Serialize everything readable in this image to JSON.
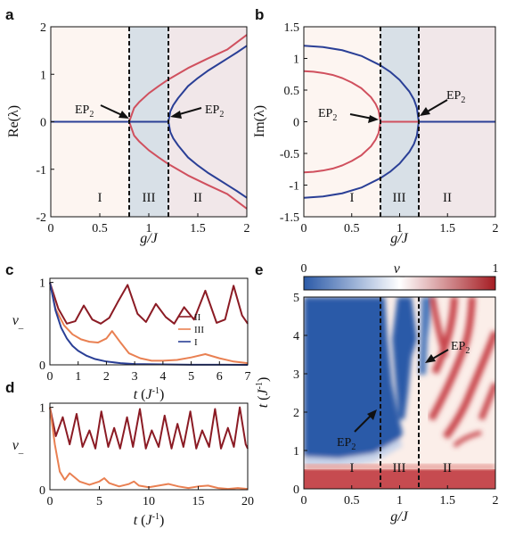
{
  "panels": {
    "a": {
      "letter": "a"
    },
    "b": {
      "letter": "b"
    },
    "c": {
      "letter": "c"
    },
    "d": {
      "letter": "d"
    },
    "e": {
      "letter": "e"
    }
  },
  "colors": {
    "red": "#d0505e",
    "blue": "#2a3f96",
    "darkred": "#8b1b24",
    "orange": "#e98052",
    "regionI": "#fdf5f1",
    "regionIII": "#d8e0e7",
    "regionII": "#f1e7e9"
  },
  "chart_data": [
    {
      "id": "a",
      "type": "line",
      "xlabel": "g/J",
      "ylabel": "Re(λ)",
      "xlim": [
        0,
        2
      ],
      "ylim": [
        -2,
        2
      ],
      "xticks": [
        "0",
        "0.5",
        "1",
        "1.5",
        "2"
      ],
      "yticks": [
        "-2",
        "-1",
        "0",
        "1",
        "2"
      ],
      "regions": [
        {
          "label": "I",
          "x": [
            0,
            0.8
          ]
        },
        {
          "label": "III",
          "x": [
            0.8,
            1.2
          ]
        },
        {
          "label": "II",
          "x": [
            1.2,
            2
          ]
        }
      ],
      "exceptional_points": [
        {
          "label": "EP",
          "sub": "2",
          "g": 0.8
        },
        {
          "label": "EP",
          "sub": "2",
          "g": 1.2
        }
      ],
      "series": [
        {
          "color": "red",
          "x": [
            0,
            0.8,
            0.85,
            0.9,
            1.0,
            1.1,
            1.2,
            1.4,
            1.6,
            1.8,
            2.0
          ],
          "upper": [
            0,
            0,
            0.29,
            0.41,
            0.6,
            0.75,
            0.89,
            1.13,
            1.33,
            1.52,
            1.83
          ]
        },
        {
          "color": "blue",
          "x": [
            0,
            1.2,
            1.22,
            1.25,
            1.3,
            1.4,
            1.5,
            1.6,
            1.7,
            1.8,
            1.9,
            2.0
          ],
          "upper": [
            0,
            0,
            0.22,
            0.35,
            0.5,
            0.75,
            0.92,
            1.07,
            1.2,
            1.33,
            1.46,
            1.6
          ]
        }
      ]
    },
    {
      "id": "b",
      "type": "line",
      "xlabel": "g/J",
      "ylabel": "Im(λ)",
      "xlim": [
        0,
        2
      ],
      "ylim": [
        -1.5,
        1.5
      ],
      "xticks": [
        "0",
        "0.5",
        "1",
        "1.5",
        "2"
      ],
      "yticks": [
        "-1.5",
        "-1",
        "-0.5",
        "0",
        "0.5",
        "1",
        "1.5"
      ],
      "regions": [
        {
          "label": "I",
          "x": [
            0,
            0.8
          ]
        },
        {
          "label": "III",
          "x": [
            0.8,
            1.2
          ]
        },
        {
          "label": "II",
          "x": [
            1.2,
            2
          ]
        }
      ],
      "exceptional_points": [
        {
          "label": "EP",
          "sub": "2",
          "g": 0.8
        },
        {
          "label": "EP",
          "sub": "2",
          "g": 1.2
        }
      ],
      "series": [
        {
          "color": "red",
          "x": [
            0,
            0.1,
            0.2,
            0.3,
            0.4,
            0.5,
            0.6,
            0.7,
            0.75,
            0.78,
            0.8,
            2.0
          ],
          "upper": [
            0.8,
            0.79,
            0.77,
            0.74,
            0.69,
            0.62,
            0.53,
            0.39,
            0.28,
            0.18,
            0,
            0
          ]
        },
        {
          "color": "blue",
          "x": [
            0,
            0.2,
            0.4,
            0.6,
            0.8,
            0.9,
            1.0,
            1.1,
            1.15,
            1.18,
            1.2,
            2.0
          ],
          "upper": [
            1.2,
            1.18,
            1.13,
            1.04,
            0.89,
            0.79,
            0.66,
            0.48,
            0.35,
            0.22,
            0,
            0
          ]
        }
      ]
    },
    {
      "id": "c",
      "type": "line",
      "xlabel": "t (J⁻¹)",
      "ylabel": "v_",
      "xlim": [
        0,
        7
      ],
      "ylim": [
        0,
        1.05
      ],
      "xticks": [
        "0",
        "1",
        "2",
        "3",
        "4",
        "5",
        "6",
        "7"
      ],
      "yticks": [
        "0",
        "1"
      ],
      "legend": [
        "II",
        "III",
        "I"
      ],
      "series": [
        {
          "name": "II",
          "color": "darkred",
          "x": [
            0,
            0.3,
            0.6,
            0.9,
            1.2,
            1.5,
            1.8,
            2.1,
            2.4,
            2.75,
            3.1,
            3.4,
            3.75,
            4.1,
            4.4,
            4.75,
            5.1,
            5.5,
            5.9,
            6.2,
            6.5,
            6.8,
            7.0
          ],
          "y": [
            1.0,
            0.68,
            0.5,
            0.53,
            0.72,
            0.55,
            0.5,
            0.57,
            0.76,
            0.97,
            0.62,
            0.52,
            0.74,
            0.58,
            0.5,
            0.7,
            0.55,
            0.9,
            0.51,
            0.55,
            0.96,
            0.6,
            0.5
          ]
        },
        {
          "name": "III",
          "color": "orange",
          "x": [
            0,
            0.2,
            0.5,
            0.8,
            1.1,
            1.4,
            1.7,
            2.0,
            2.2,
            2.5,
            2.8,
            3.2,
            3.6,
            4.0,
            4.5,
            5.0,
            5.5,
            6.0,
            6.5,
            7.0
          ],
          "y": [
            1.0,
            0.68,
            0.48,
            0.37,
            0.31,
            0.28,
            0.27,
            0.32,
            0.41,
            0.27,
            0.14,
            0.08,
            0.05,
            0.05,
            0.06,
            0.09,
            0.13,
            0.08,
            0.04,
            0.02
          ]
        },
        {
          "name": "I",
          "color": "blue",
          "x": [
            0,
            0.2,
            0.4,
            0.6,
            0.8,
            1.0,
            1.3,
            1.6,
            2.0,
            2.5,
            3.0,
            4.0,
            5.0,
            6.0,
            7.0
          ],
          "y": [
            1.0,
            0.66,
            0.45,
            0.32,
            0.23,
            0.17,
            0.11,
            0.07,
            0.04,
            0.02,
            0.01,
            0.005,
            0.002,
            0.001,
            0.0
          ]
        }
      ]
    },
    {
      "id": "d",
      "type": "line",
      "xlabel": "t (J⁻¹)",
      "ylabel": "v_",
      "xlim": [
        0,
        20
      ],
      "ylim": [
        0,
        1.05
      ],
      "xticks": [
        "0",
        "5",
        "10",
        "15",
        "20"
      ],
      "yticks": [
        "0",
        "1"
      ],
      "series": [
        {
          "name": "II",
          "color": "darkred",
          "x": [
            0,
            0.6,
            1.3,
            2.0,
            2.7,
            3.3,
            4.0,
            4.6,
            5.2,
            5.9,
            6.5,
            7.1,
            7.8,
            8.4,
            9.1,
            9.7,
            10.3,
            11.0,
            11.6,
            12.3,
            12.9,
            13.5,
            14.2,
            14.8,
            15.4,
            16.1,
            16.7,
            17.3,
            18.0,
            18.6,
            19.2,
            19.8,
            20.0
          ],
          "y": [
            1.0,
            0.65,
            0.88,
            0.55,
            0.92,
            0.52,
            0.72,
            0.5,
            0.95,
            0.52,
            0.75,
            0.5,
            0.88,
            0.52,
            0.98,
            0.5,
            0.72,
            0.52,
            0.9,
            0.5,
            0.8,
            0.52,
            0.95,
            0.5,
            0.72,
            0.52,
            0.98,
            0.5,
            0.75,
            0.52,
            1.0,
            0.55,
            0.5
          ]
        },
        {
          "name": "III",
          "color": "orange",
          "x": [
            0,
            0.5,
            1.0,
            1.5,
            2.0,
            3.0,
            4.0,
            5.0,
            5.5,
            6.0,
            7.0,
            8.0,
            8.5,
            9.0,
            10.0,
            11.0,
            12.0,
            13.0,
            14.0,
            15.0,
            16.0,
            17.0,
            18.0,
            19.0,
            20.0
          ],
          "y": [
            1.0,
            0.55,
            0.22,
            0.12,
            0.2,
            0.1,
            0.06,
            0.1,
            0.14,
            0.08,
            0.04,
            0.07,
            0.1,
            0.05,
            0.03,
            0.05,
            0.07,
            0.04,
            0.02,
            0.04,
            0.05,
            0.02,
            0.01,
            0.02,
            0.01
          ]
        }
      ]
    },
    {
      "id": "e",
      "type": "heatmap",
      "xlabel": "g/J",
      "ylabel": "t (J⁻¹)",
      "xlim": [
        0,
        2
      ],
      "ylim": [
        0,
        5
      ],
      "xticks": [
        "0",
        "0.5",
        "1",
        "1.5",
        "2"
      ],
      "yticks": [
        "0",
        "1",
        "2",
        "3",
        "4",
        "5"
      ],
      "colorbar": {
        "label": "v_",
        "min": "0",
        "max": "1",
        "colors": [
          "#2b5aa8",
          "#ffffff",
          "#a51c22"
        ]
      },
      "regions": [
        {
          "label": "I",
          "x": [
            0,
            0.8
          ]
        },
        {
          "label": "III",
          "x": [
            0.8,
            1.2
          ]
        },
        {
          "label": "II",
          "x": [
            1.2,
            2
          ]
        }
      ],
      "exceptional_points": [
        {
          "label": "EP",
          "sub": "2",
          "g": 0.8
        },
        {
          "label": "EP",
          "sub": "2",
          "g": 1.2
        }
      ]
    }
  ]
}
